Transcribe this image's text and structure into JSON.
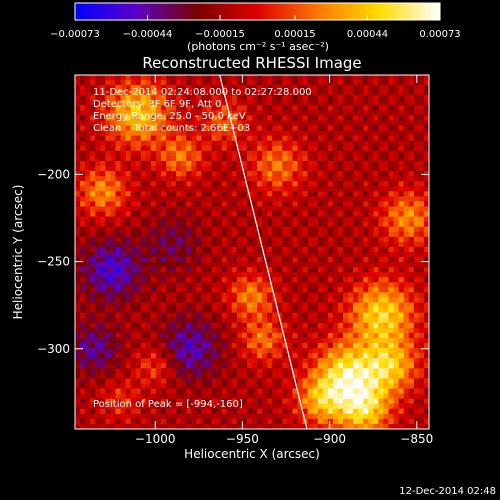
{
  "chart_data": {
    "type": "heatmap",
    "title": "Reconstructed RHESSI Image",
    "xlabel": "Heliocentric X (arcsec)",
    "ylabel": "Heliocentric Y (arcsec)",
    "xlim": [
      -1046,
      -843
    ],
    "ylim": [
      -346,
      -143
    ],
    "x_ticks": [
      -1000,
      -950,
      -900,
      -850
    ],
    "x_tick_labels": [
      "−1000",
      "−950",
      "−900",
      "−850"
    ],
    "y_ticks": [
      -200,
      -250,
      -300
    ],
    "y_tick_labels": [
      "−200",
      "−250",
      "−300"
    ],
    "colorbar": {
      "range": [
        -0.00073,
        0.00073
      ],
      "ticks": [
        -0.00073,
        -0.00044,
        -0.00015,
        0.00015,
        0.00044,
        0.00073
      ],
      "tick_labels": [
        "−0.00073",
        "−0.00044",
        "−0.00015",
        "0.00015",
        "0.00044",
        "0.00073"
      ],
      "unit_label": "(photons cm⁻² s⁻¹ asec⁻²)",
      "colors": [
        "#0000ff",
        "#5a00c8",
        "#780000",
        "#dc0000",
        "#ff7800",
        "#ffdc00",
        "#ffffff"
      ]
    },
    "annotations": [
      "11-Dec-2014 02:24:08.000 to 02:27:28.000",
      "Detectors: 3F 6F 9F, Att 0",
      "Energy Range: 25.0 - 50.0 keV",
      "Clean    Total counts: 2.66E+03"
    ],
    "peak_label": "Position of Peak = [-994,-160]",
    "peak": {
      "x": -994,
      "y": -160
    },
    "limb_line": {
      "x1": -963,
      "y1": -143,
      "x2": -913,
      "y2": -346
    },
    "blobs": [
      {
        "x": -1010,
        "y": -165,
        "amp": 0.00055,
        "s": 13
      },
      {
        "x": -1030,
        "y": -210,
        "amp": 0.0004,
        "s": 10
      },
      {
        "x": -985,
        "y": -190,
        "amp": 0.00035,
        "s": 9
      },
      {
        "x": -960,
        "y": -170,
        "amp": 0.0003,
        "s": 9
      },
      {
        "x": -930,
        "y": -195,
        "amp": 0.00035,
        "s": 11
      },
      {
        "x": -945,
        "y": -270,
        "amp": 0.00038,
        "s": 9
      },
      {
        "x": -938,
        "y": -295,
        "amp": 0.00034,
        "s": 9
      },
      {
        "x": -855,
        "y": -225,
        "amp": 0.0004,
        "s": 11
      },
      {
        "x": -870,
        "y": -280,
        "amp": 0.0006,
        "s": 13
      },
      {
        "x": -865,
        "y": -310,
        "amp": 0.0005,
        "s": 11
      },
      {
        "x": -890,
        "y": -315,
        "amp": 0.00065,
        "s": 13
      },
      {
        "x": -880,
        "y": -335,
        "amp": 0.00055,
        "s": 11
      },
      {
        "x": -905,
        "y": -330,
        "amp": 0.00042,
        "s": 10
      },
      {
        "x": -1000,
        "y": -310,
        "amp": 0.00025,
        "s": 8
      },
      {
        "x": -1020,
        "y": -330,
        "amp": 0.0002,
        "s": 8
      },
      {
        "x": -1025,
        "y": -255,
        "amp": -0.0004,
        "s": 12
      },
      {
        "x": -980,
        "y": -300,
        "amp": -0.00035,
        "s": 12
      },
      {
        "x": -1035,
        "y": -300,
        "amp": -0.0003,
        "s": 10
      },
      {
        "x": -990,
        "y": -240,
        "amp": -0.0002,
        "s": 11
      }
    ]
  },
  "footer": {
    "timestamp": "12-Dec-2014 02:48"
  }
}
